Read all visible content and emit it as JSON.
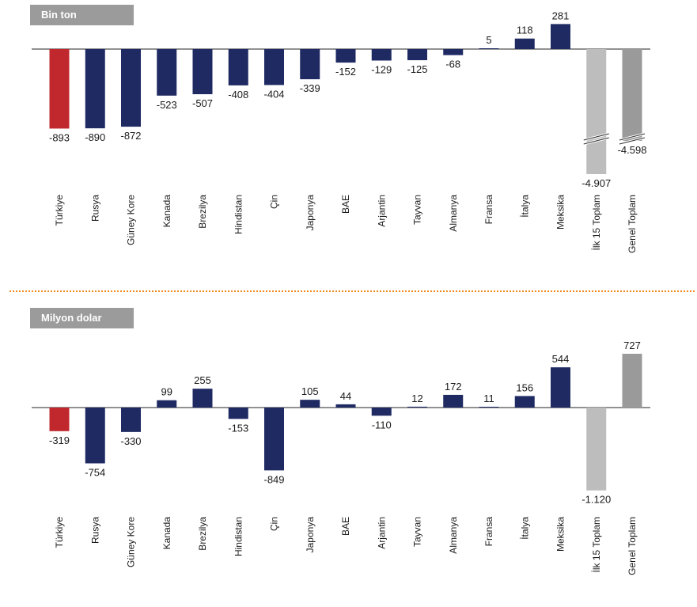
{
  "colors": {
    "highlight": "#c0282d",
    "bar": "#1f2a63",
    "total_light": "#bdbdbd",
    "total_dark": "#9a9a9a"
  },
  "chart_data": [
    {
      "type": "bar",
      "panel_label": "Bin ton",
      "categories": [
        "Türkiye",
        "Rusya",
        "Güney Kore",
        "Kanada",
        "Brezilya",
        "Hindistan",
        "Çin",
        "Japonya",
        "BAE",
        "Arjantin",
        "Tayvan",
        "Almanya",
        "Fransa",
        "İtalya",
        "Meksika",
        "İlk 15 Toplam",
        "Genel Toplam"
      ],
      "values": [
        -893,
        -890,
        -872,
        -523,
        -507,
        -408,
        -404,
        -339,
        -152,
        -129,
        -125,
        -68,
        5,
        118,
        281,
        -4907,
        -4598
      ],
      "value_labels": [
        "-893",
        "-890",
        "-872",
        "-523",
        "-507",
        "-408",
        "-404",
        "-339",
        "-152",
        "-129",
        "-125",
        "-68",
        "5",
        "118",
        "281",
        "-4.907",
        "-4.598"
      ],
      "broken_axis_categories": [
        "İlk 15 Toplam",
        "Genel Toplam"
      ]
    },
    {
      "type": "bar",
      "panel_label": "Milyon dolar",
      "categories": [
        "Türkiye",
        "Rusya",
        "Güney Kore",
        "Kanada",
        "Brezilya",
        "Hindistan",
        "Çin",
        "Japonya",
        "BAE",
        "Arjantin",
        "Tayvan",
        "Almanya",
        "Fransa",
        "İtalya",
        "Meksika",
        "İlk 15 Toplam",
        "Genel Toplam"
      ],
      "values": [
        -319,
        -754,
        -330,
        99,
        255,
        -153,
        -849,
        105,
        44,
        -110,
        12,
        172,
        11,
        156,
        544,
        -1120,
        727
      ],
      "value_labels": [
        "-319",
        "-754",
        "-330",
        "99",
        "255",
        "-153",
        "-849",
        "105",
        "44",
        "-110",
        "12",
        "172",
        "11",
        "156",
        "544",
        "-1.120",
        "727"
      ]
    }
  ]
}
